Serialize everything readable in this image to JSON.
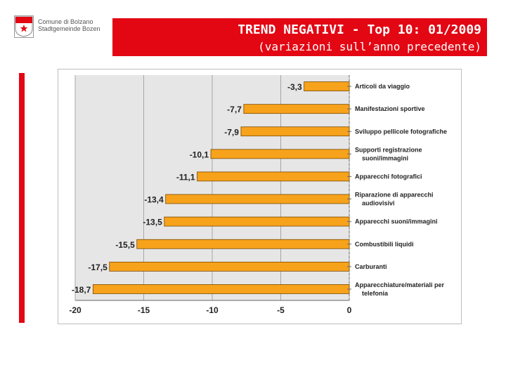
{
  "header": {
    "logo_line1": "Comune di Bolzano",
    "logo_line2": "Stadtgemeinde Bozen",
    "title": "TREND NEGATIVI - Top 10: 01/2009",
    "subtitle": "(variazioni sull’anno precedente)"
  },
  "colors": {
    "banner": "#e30613",
    "bar": "#f7a21b",
    "bar_border": "#7a4a00",
    "plot_bg": "#e6e6e6"
  },
  "chart_data": {
    "type": "bar",
    "orientation": "horizontal",
    "title": "",
    "xlabel": "",
    "ylabel": "",
    "xlim": [
      -20,
      0
    ],
    "xticks": [
      -20,
      -15,
      -10,
      -5,
      0
    ],
    "xtick_labels": [
      "-20",
      "-15",
      "-10",
      "-5",
      "0"
    ],
    "grid": true,
    "legend": "none",
    "categories": [
      "Articoli da viaggio",
      "Manifestazioni sportive",
      "Sviluppo pellicole fotografiche",
      "Supporti registrazione suoni/immagini",
      "Apparecchi fotografici",
      "Riparazione di apparecchi audiovisivi",
      "Apparecchi suoni/immagini",
      "Combustibili liquidi",
      "Carburanti",
      "Apparecchiature/materiali per telefonia"
    ],
    "category_lines": [
      [
        "Articoli da viaggio"
      ],
      [
        "Manifestazioni sportive"
      ],
      [
        "Sviluppo pellicole fotografiche"
      ],
      [
        "Supporti registrazione",
        "suoni/immagini"
      ],
      [
        "Apparecchi fotografici"
      ],
      [
        "Riparazione di apparecchi",
        "audiovisivi"
      ],
      [
        "Apparecchi suoni/immagini"
      ],
      [
        "Combustibili liquidi"
      ],
      [
        "Carburanti"
      ],
      [
        "Apparecchiature/materiali per",
        "telefonia"
      ]
    ],
    "values": [
      -3.3,
      -7.7,
      -7.9,
      -10.1,
      -11.1,
      -13.4,
      -13.5,
      -15.5,
      -17.5,
      -18.7
    ],
    "value_labels": [
      "-3,3",
      "-7,7",
      "-7,9",
      "-10,1",
      "-11,1",
      "-13,4",
      "-13,5",
      "-15,5",
      "-17,5",
      "-18,7"
    ]
  }
}
